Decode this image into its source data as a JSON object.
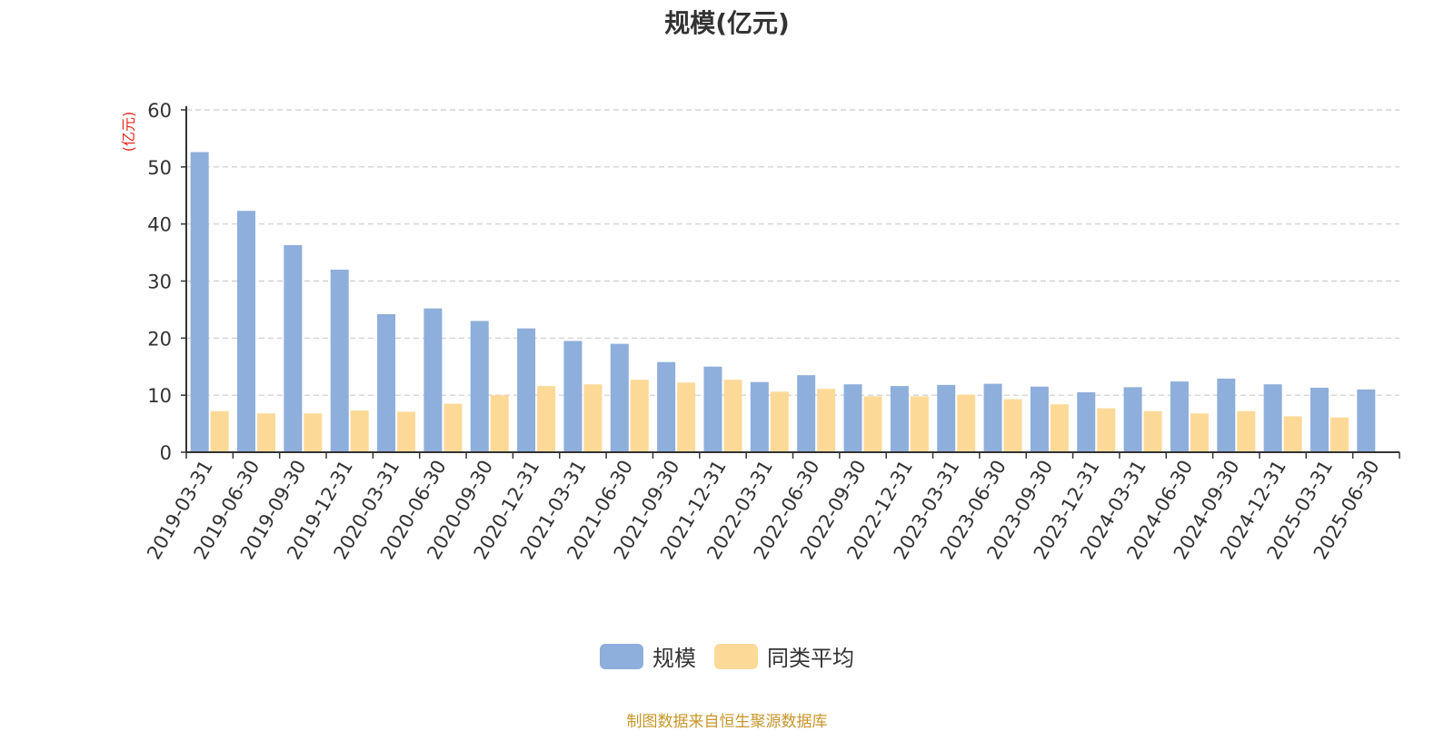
{
  "chart_data": {
    "type": "bar",
    "title": "规模(亿元)",
    "ylabel": "(亿元)",
    "ylim": [
      0,
      60
    ],
    "yticks": [
      0,
      10,
      20,
      30,
      40,
      50,
      60
    ],
    "grid": true,
    "legend_position": "bottom-center",
    "categories": [
      "2019-03-31",
      "2019-06-30",
      "2019-09-30",
      "2019-12-31",
      "2020-03-31",
      "2020-06-30",
      "2020-09-30",
      "2020-12-31",
      "2021-03-31",
      "2021-06-30",
      "2021-09-30",
      "2021-12-31",
      "2022-03-31",
      "2022-06-30",
      "2022-09-30",
      "2022-12-31",
      "2023-03-31",
      "2023-06-30",
      "2023-09-30",
      "2023-12-31",
      "2024-03-31",
      "2024-06-30",
      "2024-09-30",
      "2024-12-31",
      "2025-03-31",
      "2025-06-30"
    ],
    "series": [
      {
        "name": "规模",
        "color": "#8eaedb",
        "values": [
          52.6,
          42.3,
          36.3,
          32.0,
          24.2,
          25.2,
          23.0,
          21.7,
          19.5,
          19.0,
          15.8,
          15.0,
          12.3,
          13.5,
          11.9,
          11.6,
          11.8,
          12.0,
          11.5,
          10.5,
          11.4,
          12.4,
          12.9,
          11.9,
          11.3,
          11.0
        ]
      },
      {
        "name": "同类平均",
        "color": "#fdd998",
        "values": [
          7.2,
          6.8,
          6.8,
          7.3,
          7.1,
          8.5,
          10.0,
          11.6,
          11.9,
          12.7,
          12.2,
          12.7,
          10.6,
          11.1,
          9.8,
          9.8,
          10.1,
          9.3,
          8.4,
          7.7,
          7.2,
          6.8,
          7.2,
          6.3,
          6.1,
          null
        ]
      }
    ]
  },
  "source_text": "制图数据来自恒生聚源数据库",
  "colors": {
    "axis": "#333333",
    "grid": "#cccccc",
    "ylabel": "#e8261c",
    "source": "#c8962a"
  }
}
